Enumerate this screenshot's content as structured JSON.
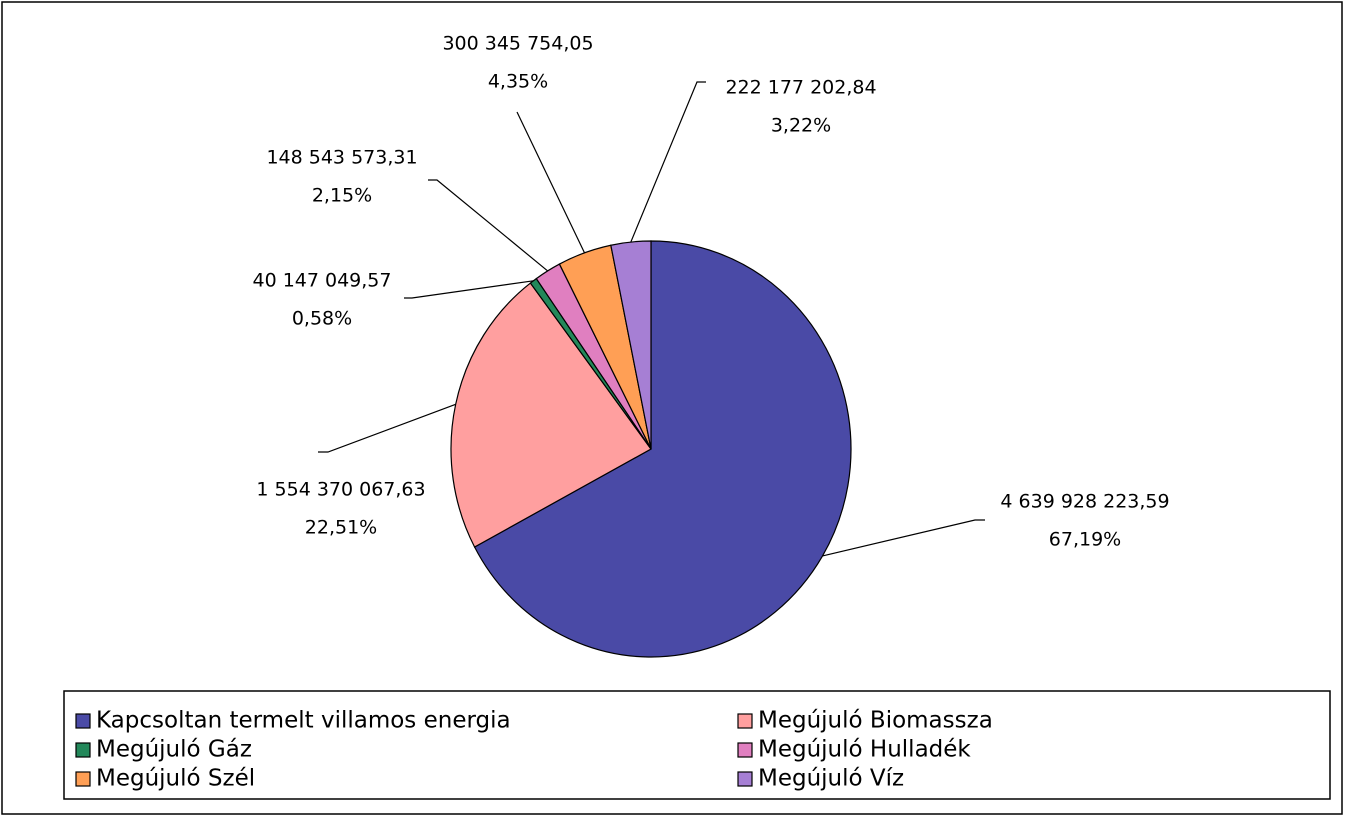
{
  "chart_data": {
    "type": "pie",
    "categories": [
      "Kapcsoltan termelt villamos energia",
      "Megújuló Biomassza",
      "Megújuló Gáz",
      "Megújuló Hulladék",
      "Megújuló Szél",
      "Megújuló Víz"
    ],
    "values": [
      4639928223.59,
      1554370067.63,
      40147049.57,
      148543573.31,
      300345754.05,
      222177202.84
    ],
    "value_labels": [
      "4 639 928 223,59",
      "1 554 370 067,63",
      "40 147 049,57",
      "148 543 573,31",
      "300 345 754,05",
      "222 177 202,84"
    ],
    "percents": [
      67.19,
      22.51,
      0.58,
      2.15,
      4.35,
      3.22
    ],
    "percent_labels": [
      "67,19%",
      "22,51%",
      "0,58%",
      "2,15%",
      "4,35%",
      "3,22%"
    ],
    "colors": [
      "#4a4aa6",
      "#ff9f9f",
      "#23885a",
      "#e07fc0",
      "#ff9f55",
      "#a67fd4"
    ]
  }
}
